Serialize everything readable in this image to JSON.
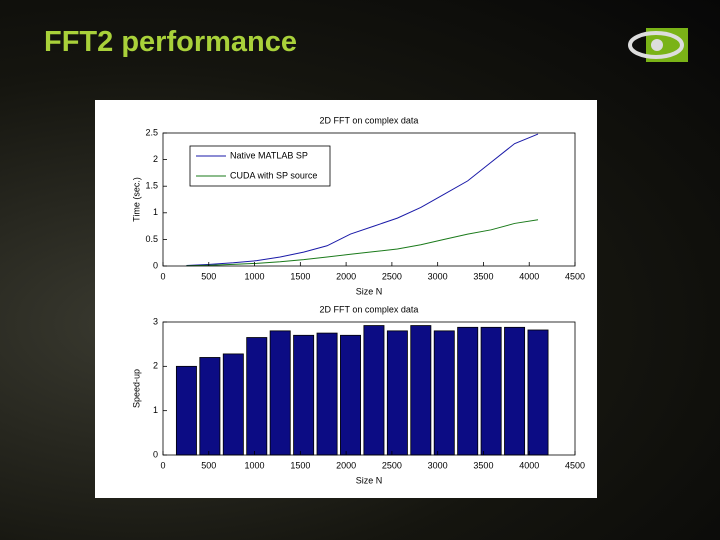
{
  "title": "FFT2 performance",
  "chart_data": [
    {
      "type": "line",
      "title": "2D FFT on complex data",
      "xlabel": "Size N",
      "ylabel": "Time (sec.)",
      "x": [
        256,
        512,
        768,
        1024,
        1280,
        1536,
        1792,
        2048,
        2304,
        2560,
        2816,
        3072,
        3328,
        3584,
        3840,
        4096
      ],
      "series": [
        {
          "name": "Native MATLAB SP",
          "color": "#1a1aa8",
          "values": [
            0.01,
            0.03,
            0.06,
            0.1,
            0.17,
            0.26,
            0.38,
            0.6,
            0.75,
            0.9,
            1.1,
            1.35,
            1.6,
            1.95,
            2.3,
            2.48
          ]
        },
        {
          "name": "CUDA with SP source",
          "color": "#1a7a1a",
          "values": [
            0.005,
            0.015,
            0.03,
            0.05,
            0.08,
            0.12,
            0.17,
            0.22,
            0.27,
            0.32,
            0.4,
            0.5,
            0.6,
            0.68,
            0.8,
            0.87
          ]
        }
      ],
      "xlim": [
        0,
        4500
      ],
      "xticks": [
        0,
        500,
        1000,
        1500,
        2000,
        2500,
        3000,
        3500,
        4000,
        4500
      ],
      "ylim": [
        0,
        2.5
      ],
      "yticks": [
        0,
        0.5,
        1,
        1.5,
        2,
        2.5
      ],
      "legend": "upper left"
    },
    {
      "type": "bar",
      "title": "2D FFT on complex data",
      "xlabel": "Size N",
      "ylabel": "Speed-up",
      "x": [
        256,
        512,
        768,
        1024,
        1280,
        1536,
        1792,
        2048,
        2304,
        2560,
        2816,
        3072,
        3328,
        3584,
        3840,
        4096
      ],
      "values": [
        2.0,
        2.2,
        2.28,
        2.65,
        2.8,
        2.7,
        2.75,
        2.7,
        2.92,
        2.8,
        2.92,
        2.8,
        2.88,
        2.88,
        2.88,
        2.82
      ],
      "color": "#0c0c84",
      "xlim": [
        0,
        4500
      ],
      "xticks": [
        0,
        500,
        1000,
        1500,
        2000,
        2500,
        3000,
        3500,
        4000,
        4500
      ],
      "ylim": [
        0,
        3
      ],
      "yticks": [
        0,
        1,
        2,
        3
      ]
    }
  ]
}
